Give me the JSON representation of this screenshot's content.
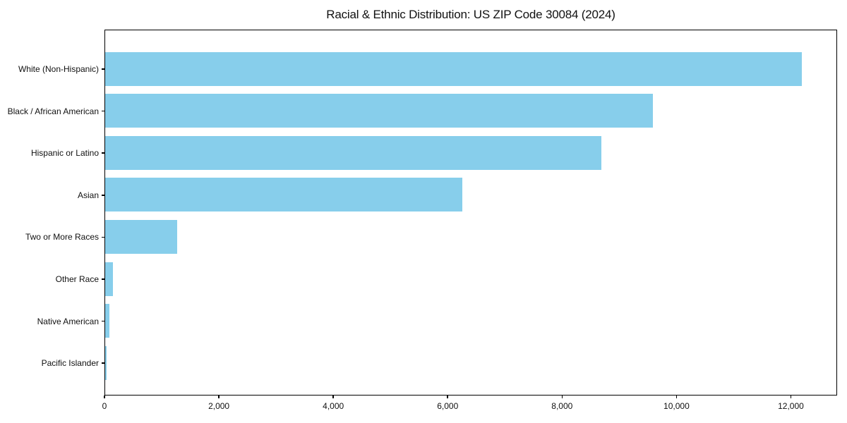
{
  "chart_data": {
    "type": "bar",
    "orientation": "horizontal",
    "title": "Racial & Ethnic Distribution: US ZIP Code 30084 (2024)",
    "categories": [
      "White (Non-Hispanic)",
      "Black / African American",
      "Hispanic or Latino",
      "Asian",
      "Two or More Races",
      "Other Race",
      "Native American",
      "Pacific Islander"
    ],
    "values": [
      12180,
      9580,
      8670,
      6240,
      1260,
      130,
      70,
      20
    ],
    "xlabel": "",
    "ylabel": "",
    "xlim": [
      0,
      12790
    ],
    "x_ticks": [
      0,
      2000,
      4000,
      6000,
      8000,
      10000,
      12000
    ],
    "x_tick_labels": [
      "0",
      "2,000",
      "4,000",
      "6,000",
      "8,000",
      "10,000",
      "12,000"
    ],
    "bar_color": "#87CEEB",
    "grid": false,
    "legend": null,
    "frame": "full-box"
  }
}
